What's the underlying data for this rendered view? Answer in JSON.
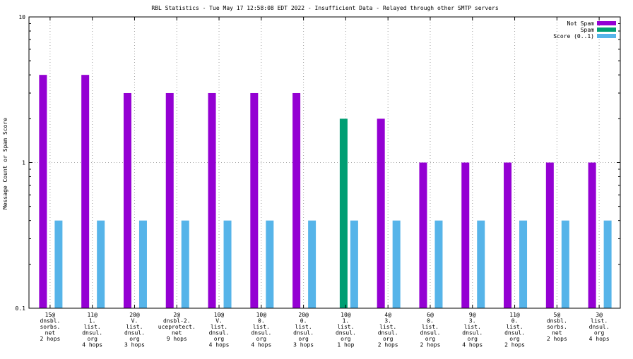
{
  "chart_data": {
    "type": "bar",
    "title": "RBL Statistics - Tue May 17 12:58:08 EDT 2022 - Insufficient Data - Relayed through other SMTP servers",
    "ylabel": "Message Count or Spam Score",
    "xlabel": "",
    "yscale": "log",
    "ylim": [
      0.1,
      10
    ],
    "yticks": [
      "10",
      "1",
      "0.1"
    ],
    "grid": true,
    "legend_position": "top-right",
    "categories": [
      [
        "15@",
        "dnsbl.",
        "sorbs.",
        "net",
        "2 hops"
      ],
      [
        "11@",
        "1.",
        "list.",
        "dnsul.",
        "org",
        "4 hops"
      ],
      [
        "20@",
        "V.",
        "list.",
        "dnsul.",
        "org",
        "3 hops"
      ],
      [
        "2@",
        "dnsbl-2.",
        "uceprotect.",
        "net",
        "9 hops"
      ],
      [
        "10@",
        "V.",
        "list.",
        "dnsul.",
        "org",
        "4 hops"
      ],
      [
        "10@",
        "0.",
        "list.",
        "dnsul.",
        "org",
        "4 hops"
      ],
      [
        "20@",
        "0.",
        "list.",
        "dnsul.",
        "org",
        "3 hops"
      ],
      [
        "10@",
        "1.",
        "list.",
        "dnsul.",
        "org",
        "1 hop"
      ],
      [
        "4@",
        "3.",
        "list.",
        "dnsul.",
        "org",
        "2 hops"
      ],
      [
        "6@",
        "0.",
        "list.",
        "dnsul.",
        "org",
        "2 hops"
      ],
      [
        "9@",
        "3.",
        "list.",
        "dnsul.",
        "org",
        "4 hops"
      ],
      [
        "11@",
        "0.",
        "list.",
        "dnsul.",
        "org",
        "2 hops"
      ],
      [
        "5@",
        "dnsbl.",
        "sorbs.",
        "net",
        "2 hops"
      ],
      [
        "3@",
        "list.",
        "dnsul.",
        "org",
        "4 hops"
      ]
    ],
    "series": [
      {
        "name": "Not Spam",
        "color": "#9400d3",
        "values": [
          4,
          4,
          3,
          3,
          3,
          3,
          3,
          null,
          2,
          1,
          1,
          1,
          1,
          1
        ]
      },
      {
        "name": "Spam",
        "color": "#009e73",
        "values": [
          null,
          null,
          null,
          null,
          null,
          null,
          null,
          2,
          null,
          null,
          null,
          null,
          null,
          null
        ]
      },
      {
        "name": "Score (0..1)",
        "color": "#56b4e9",
        "values": [
          0.4,
          0.4,
          0.4,
          0.4,
          0.4,
          0.4,
          0.4,
          0.4,
          0.4,
          0.4,
          0.4,
          0.4,
          0.4,
          0.4
        ]
      }
    ]
  }
}
